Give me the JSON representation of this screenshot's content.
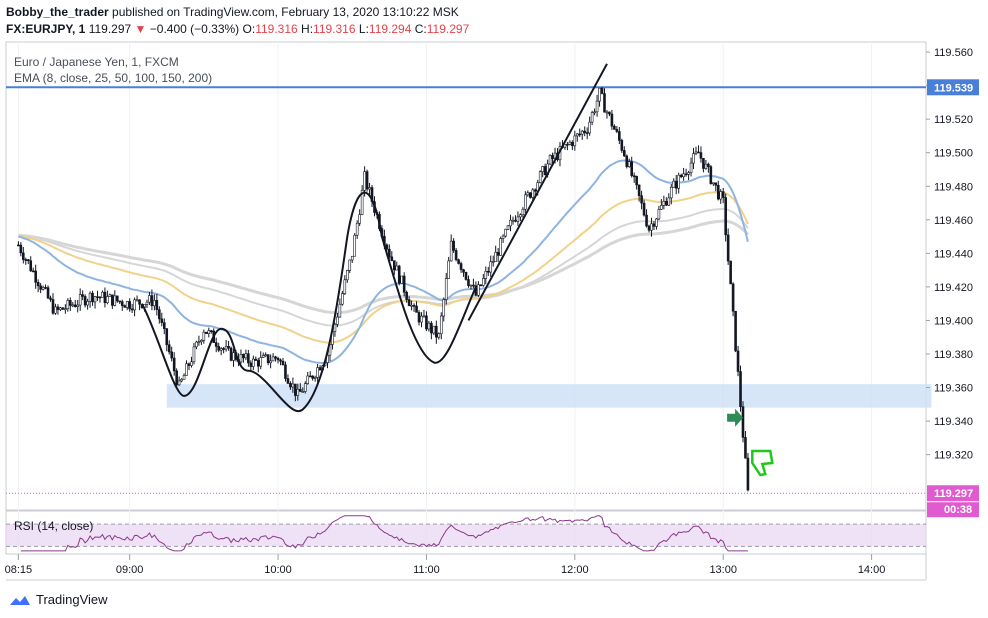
{
  "header": {
    "author": "Bobby_the_trader",
    "published": "published on TradingView.com, February 13, 2020 13:10:22 MSK",
    "symbol": "FX:EURJPY, 1",
    "last": "119.297",
    "change": "−0.400 (−0.33%)",
    "o_label": "O:",
    "o_value": "119.316",
    "h_label": "H:",
    "h_value": "119.316",
    "l_label": "L:",
    "l_value": "119.294",
    "c_label": "C:",
    "c_value": "119.297"
  },
  "legend": {
    "instrument": "Euro / Japanese Yen, 1, FXCM",
    "ema": "EMA (8, close, 25, 50, 100, 150, 200)"
  },
  "rsi_label": "RSI (14, close)",
  "branding": "TradingView",
  "colors": {
    "up": "#ffffff",
    "down": "#131722",
    "ema_blue": "#8fb4e0",
    "ema_yellow": "#f1d28a",
    "ema_gray": "#d6d6d6",
    "resistance": "#4a7fd8",
    "zone": "#cfe0f7",
    "rsi_line": "#8b3a8b",
    "rsi_band": "#e9d5f2",
    "last_price": "#e05bd0",
    "arrow_green": "#2e8b57",
    "thumb_green": "#22c71c"
  },
  "chart_data": {
    "type": "candlestick",
    "title": "Euro / Japanese Yen, 1, FXCM",
    "x_ticks": [
      "08:15",
      "09:00",
      "10:00",
      "11:00",
      "12:00",
      "13:00",
      "14:00"
    ],
    "y_ticks": [
      "119.560",
      "119.540",
      "119.520",
      "119.500",
      "119.480",
      "119.460",
      "119.440",
      "119.420",
      "119.400",
      "119.380",
      "119.360",
      "119.340",
      "119.320"
    ],
    "ylim": [
      119.287,
      119.566
    ],
    "resistance": "119.539",
    "last_price": "119.297",
    "countdown": "00:38",
    "support_zone": [
      119.348,
      119.362
    ],
    "price_path": [
      [
        "08:15",
        119.445
      ],
      [
        "08:30",
        119.405
      ],
      [
        "08:45",
        119.415
      ],
      [
        "09:00",
        119.41
      ],
      [
        "09:10",
        119.412
      ],
      [
        "09:20",
        119.36
      ],
      [
        "09:30",
        119.395
      ],
      [
        "09:40",
        119.38
      ],
      [
        "09:50",
        119.375
      ],
      [
        "10:00",
        119.378
      ],
      [
        "10:08",
        119.355
      ],
      [
        "10:20",
        119.38
      ],
      [
        "10:30",
        119.44
      ],
      [
        "10:35",
        119.485
      ],
      [
        "10:45",
        119.44
      ],
      [
        "10:55",
        119.405
      ],
      [
        "11:05",
        119.39
      ],
      [
        "11:10",
        119.445
      ],
      [
        "11:20",
        119.415
      ],
      [
        "11:35",
        119.46
      ],
      [
        "11:50",
        119.495
      ],
      [
        "12:05",
        119.515
      ],
      [
        "12:10",
        119.535
      ],
      [
        "12:20",
        119.5
      ],
      [
        "12:30",
        119.455
      ],
      [
        "12:40",
        119.48
      ],
      [
        "12:50",
        119.5
      ],
      [
        "13:00",
        119.47
      ],
      [
        "13:05",
        119.385
      ],
      [
        "13:10",
        119.297
      ]
    ],
    "rsi_range": [
      30,
      70
    ]
  }
}
